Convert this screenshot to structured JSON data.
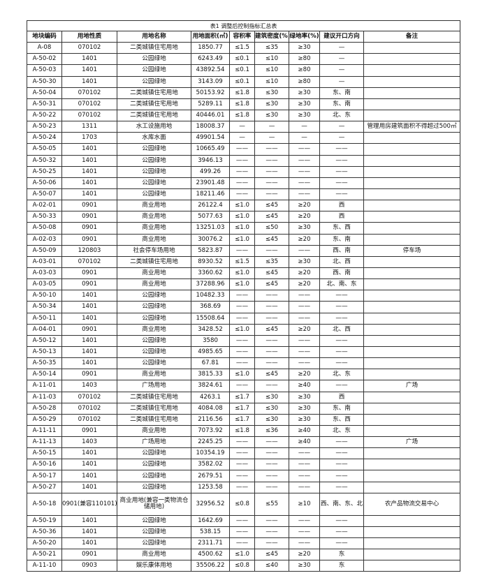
{
  "title": "表1 调整后控制指标汇总表",
  "headers": [
    "地块编码",
    "用地性质",
    "用地名称",
    "用地面积(㎡)",
    "容积率",
    "建筑密度(%)",
    "绿地率(%)",
    "建议开口方向",
    "备注"
  ],
  "rows": [
    [
      "A-08",
      "070102",
      "二类城镇住宅用地",
      "1850.77",
      "≤1.5",
      "≤35",
      "≥30",
      "—",
      ""
    ],
    [
      "A-50-02",
      "1401",
      "公园绿地",
      "6243.49",
      "≤0.1",
      "≤10",
      "≥80",
      "—",
      ""
    ],
    [
      "A-50-03",
      "1401",
      "公园绿地",
      "43892.54",
      "≤0.1",
      "≤10",
      "≥80",
      "—",
      ""
    ],
    [
      "A-50-30",
      "1401",
      "公园绿地",
      "3143.09",
      "≤0.1",
      "≤10",
      "≥80",
      "—",
      ""
    ],
    [
      "A-50-04",
      "070102",
      "二类城镇住宅用地",
      "50153.92",
      "≤1.8",
      "≤30",
      "≥30",
      "东、南",
      ""
    ],
    [
      "A-50-31",
      "070102",
      "二类城镇住宅用地",
      "5289.11",
      "≤1.8",
      "≤30",
      "≥30",
      "东、南",
      ""
    ],
    [
      "A-50-22",
      "070102",
      "二类城镇住宅用地",
      "40446.01",
      "≤1.8",
      "≤30",
      "≥30",
      "北、东",
      ""
    ],
    [
      "A-50-23",
      "1311",
      "水工设施用地",
      "18008.37",
      "—",
      "—",
      "—",
      "—",
      "管理用房建筑面积不得超过500㎡"
    ],
    [
      "A-50-24",
      "1703",
      "水库水面",
      "49901.54",
      "—",
      "—",
      "—",
      "—",
      ""
    ],
    [
      "A-50-05",
      "1401",
      "公园绿地",
      "10665.49",
      "——",
      "——",
      "——",
      "——",
      ""
    ],
    [
      "A-50-32",
      "1401",
      "公园绿地",
      "3946.13",
      "——",
      "——",
      "——",
      "——",
      ""
    ],
    [
      "A-50-25",
      "1401",
      "公园绿地",
      "499.26",
      "——",
      "——",
      "——",
      "——",
      ""
    ],
    [
      "A-50-06",
      "1401",
      "公园绿地",
      "23901.48",
      "——",
      "——",
      "——",
      "——",
      ""
    ],
    [
      "A-50-07",
      "1401",
      "公园绿地",
      "18211.46",
      "——",
      "——",
      "——",
      "——",
      ""
    ],
    [
      "A-02-01",
      "0901",
      "商业用地",
      "26122.4",
      "≤1.0",
      "≤45",
      "≥20",
      "西",
      ""
    ],
    [
      "A-50-33",
      "0901",
      "商业用地",
      "5077.63",
      "≤1.0",
      "≤45",
      "≥20",
      "西",
      ""
    ],
    [
      "A-50-08",
      "0901",
      "商业用地",
      "13251.03",
      "≤1.0",
      "≤50",
      "≥30",
      "东、西",
      ""
    ],
    [
      "A-02-03",
      "0901",
      "商业用地",
      "30076.2",
      "≤1.0",
      "≤45",
      "≥20",
      "东、南",
      ""
    ],
    [
      "A-50-09",
      "120803",
      "社会停车场用地",
      "5823.87",
      "——",
      "——",
      "——",
      "西、南",
      "停车场"
    ],
    [
      "A-03-01",
      "070102",
      "二类城镇住宅用地",
      "8930.52",
      "≤1.5",
      "≤35",
      "≥30",
      "北、西",
      ""
    ],
    [
      "A-03-03",
      "0901",
      "商业用地",
      "3360.62",
      "≤1.0",
      "≤45",
      "≥20",
      "西、南",
      ""
    ],
    [
      "A-03-05",
      "0901",
      "商业用地",
      "37288.96",
      "≤1.0",
      "≤45",
      "≥20",
      "北、南、东",
      ""
    ],
    [
      "A-50-10",
      "1401",
      "公园绿地",
      "10482.33",
      "——",
      "——",
      "——",
      "——",
      ""
    ],
    [
      "A-50-34",
      "1401",
      "公园绿地",
      "368.69",
      "——",
      "——",
      "——",
      "——",
      ""
    ],
    [
      "A-50-11",
      "1401",
      "公园绿地",
      "15508.64",
      "——",
      "——",
      "——",
      "——",
      ""
    ],
    [
      "A-04-01",
      "0901",
      "商业用地",
      "3428.52",
      "≤1.0",
      "≤45",
      "≥20",
      "北、西",
      ""
    ],
    [
      "A-50-12",
      "1401",
      "公园绿地",
      "3580",
      "——",
      "——",
      "——",
      "——",
      ""
    ],
    [
      "A-50-13",
      "1401",
      "公园绿地",
      "4985.65",
      "——",
      "——",
      "——",
      "——",
      ""
    ],
    [
      "A-50-35",
      "1401",
      "公园绿地",
      "67.81",
      "——",
      "——",
      "——",
      "——",
      ""
    ],
    [
      "A-50-14",
      "0901",
      "商业用地",
      "3815.33",
      "≤1.0",
      "≤45",
      "≥20",
      "北、东",
      ""
    ],
    [
      "A-11-01",
      "1403",
      "广场用地",
      "3824.61",
      "——",
      "——",
      "≥40",
      "——",
      "广场"
    ],
    [
      "A-11-03",
      "070102",
      "二类城镇住宅用地",
      "4263.1",
      "≤1.7",
      "≤30",
      "≥30",
      "西",
      ""
    ],
    [
      "A-50-28",
      "070102",
      "二类城镇住宅用地",
      "4084.08",
      "≤1.7",
      "≤30",
      "≥30",
      "东、南",
      ""
    ],
    [
      "A-50-29",
      "070102",
      "二类城镇住宅用地",
      "2116.56",
      "≤1.7",
      "≤30",
      "≥30",
      "东、西",
      ""
    ],
    [
      "A-11-11",
      "0901",
      "商业用地",
      "7073.92",
      "≤1.8",
      "≤36",
      "≥40",
      "北、东",
      ""
    ],
    [
      "A-11-13",
      "1403",
      "广场用地",
      "2245.25",
      "——",
      "——",
      "≥40",
      "——",
      "广场"
    ],
    [
      "A-50-15",
      "1401",
      "公园绿地",
      "10354.19",
      "——",
      "——",
      "——",
      "——",
      ""
    ],
    [
      "A-50-16",
      "1401",
      "公园绿地",
      "3582.02",
      "——",
      "——",
      "——",
      "——",
      ""
    ],
    [
      "A-50-17",
      "1401",
      "公园绿地",
      "2679.51",
      "——",
      "——",
      "——",
      "——",
      ""
    ],
    [
      "A-50-27",
      "1401",
      "公园绿地",
      "1253.58",
      "——",
      "——",
      "——",
      "——",
      ""
    ],
    [
      "A-50-18",
      "0901(兼容110101)",
      "商业用地(兼容一类物流仓储用地)",
      "32956.52",
      "≤0.8",
      "≤55",
      "≥10",
      "西、南、东、北",
      "农产品物流交易中心"
    ],
    [
      "A-50-19",
      "1401",
      "公园绿地",
      "1642.69",
      "——",
      "——",
      "——",
      "——",
      ""
    ],
    [
      "A-50-36",
      "1401",
      "公园绿地",
      "538.15",
      "——",
      "——",
      "——",
      "——",
      ""
    ],
    [
      "A-50-20",
      "1401",
      "公园绿地",
      "2311.71",
      "——",
      "——",
      "——",
      "——",
      ""
    ],
    [
      "A-50-21",
      "0901",
      "商业用地",
      "4500.62",
      "≤1.0",
      "≤45",
      "≥20",
      "东",
      ""
    ],
    [
      "A-11-10",
      "0903",
      "娱乐康体用地",
      "35506.22",
      "≤0.8",
      "≤40",
      "≥30",
      "东",
      ""
    ]
  ]
}
